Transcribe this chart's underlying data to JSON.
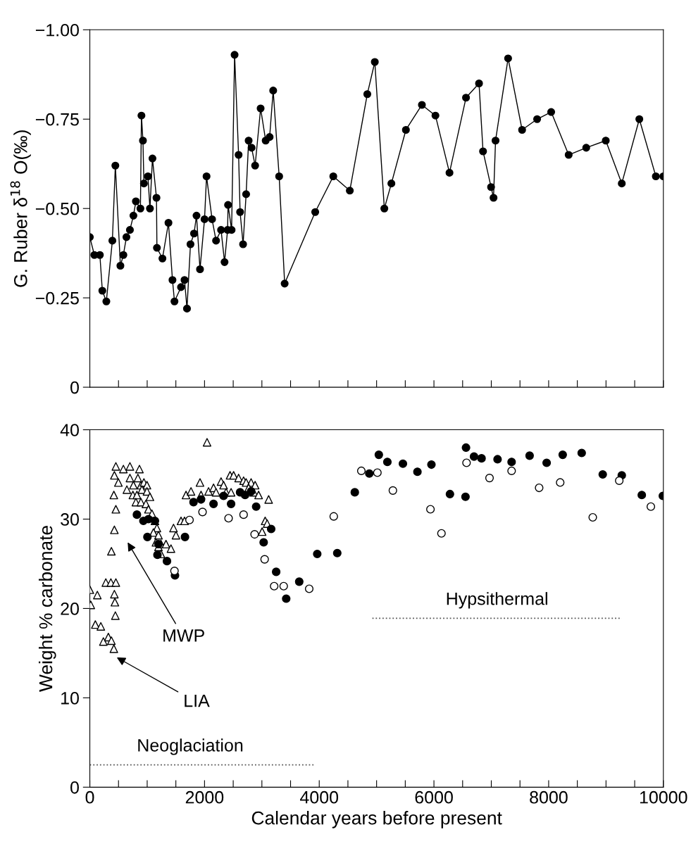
{
  "chart_data": [
    {
      "type": "line",
      "ylabel": "G. Ruber δ$^{18}$ O(‰)",
      "marker": "circle",
      "line_style": "solid",
      "grid": false,
      "legend": false,
      "tick_labels": "y",
      "xlim": [
        0,
        10000
      ],
      "ylim": [
        0,
        -1.0
      ],
      "xticks": [
        {
          "value": 0,
          "label": null
        },
        {
          "value": 500,
          "label": null
        },
        {
          "value": 1000,
          "label": null
        },
        {
          "value": 1500,
          "label": null
        },
        {
          "value": 2000,
          "label": null
        },
        {
          "value": 2500,
          "label": null
        },
        {
          "value": 3000,
          "label": null
        },
        {
          "value": 3500,
          "label": null
        },
        {
          "value": 4000,
          "label": null
        },
        {
          "value": 4500,
          "label": null
        },
        {
          "value": 5000,
          "label": null
        },
        {
          "value": 5500,
          "label": null
        },
        {
          "value": 6000,
          "label": null
        },
        {
          "value": 6500,
          "label": null
        },
        {
          "value": 7000,
          "label": null
        },
        {
          "value": 7500,
          "label": null
        },
        {
          "value": 8000,
          "label": null
        },
        {
          "value": 8500,
          "label": null
        },
        {
          "value": 9000,
          "label": null
        },
        {
          "value": 9500,
          "label": null
        },
        {
          "value": 10000,
          "label": null
        }
      ],
      "yticks": [
        0,
        {
          "value": -0.25,
          "label": "−0.25"
        },
        {
          "value": -0.5,
          "label": "−0.50"
        },
        {
          "value": -0.75,
          "label": "−0.75"
        },
        {
          "value": -1.0,
          "label": "−1.00"
        }
      ],
      "series": [
        {
          "color": "#000000",
          "x": [
            0,
            79,
            175,
            218,
            288,
            393,
            445,
            533,
            585,
            638,
            699,
            760,
            803,
            882,
            900,
            926,
            943,
            1013,
            1048,
            1092,
            1162,
            1170,
            1266,
            1371,
            1441,
            1476,
            1590,
            1651,
            1694,
            1755,
            1817,
            1860,
            1921,
            2000,
            2035,
            2131,
            2201,
            2288,
            2349,
            2402,
            2410,
            2472,
            2524,
            2594,
            2620,
            2672,
            2725,
            2769,
            2821,
            2882,
            2978,
            3066,
            3135,
            3197,
            3301,
            3397,
            3930,
            4245,
            4533,
            4838,
            4969,
            5135,
            5258,
            5511,
            5790,
            6026,
            6271,
            6559,
            6786,
            6856,
            6996,
            7039,
            7074,
            7293,
            7537,
            7799,
            8044,
            8349,
            8655,
            8996,
            9275,
            9581,
            9869,
            10000
          ],
          "values": [
            -0.42,
            -0.37,
            -0.37,
            -0.27,
            -0.24,
            -0.41,
            -0.62,
            -0.34,
            -0.37,
            -0.42,
            -0.44,
            -0.48,
            -0.52,
            -0.5,
            -0.76,
            -0.69,
            -0.57,
            -0.59,
            -0.5,
            -0.64,
            -0.53,
            -0.39,
            -0.36,
            -0.46,
            -0.3,
            -0.24,
            -0.28,
            -0.3,
            -0.22,
            -0.4,
            -0.43,
            -0.48,
            -0.33,
            -0.47,
            -0.59,
            -0.47,
            -0.41,
            -0.44,
            -0.35,
            -0.44,
            -0.51,
            -0.44,
            -0.93,
            -0.65,
            -0.49,
            -0.4,
            -0.54,
            -0.69,
            -0.67,
            -0.62,
            -0.78,
            -0.69,
            -0.7,
            -0.83,
            -0.59,
            -0.29,
            -0.49,
            -0.59,
            -0.55,
            -0.82,
            -0.91,
            -0.5,
            -0.57,
            -0.72,
            -0.79,
            -0.76,
            -0.6,
            -0.81,
            -0.85,
            -0.66,
            -0.56,
            -0.53,
            -0.69,
            -0.92,
            -0.72,
            -0.75,
            -0.77,
            -0.65,
            -0.67,
            -0.69,
            -0.57,
            -0.75,
            -0.59,
            -0.59
          ]
        }
      ]
    },
    {
      "type": "scatter",
      "xlabel": "Calendar years before present",
      "ylabel": "Weight % carbonate",
      "grid": false,
      "legend": false,
      "xlim": [
        0,
        10000
      ],
      "ylim": [
        0,
        40
      ],
      "xticks": [
        0,
        {
          "value": 500,
          "label": null
        },
        {
          "value": 1000,
          "label": null
        },
        {
          "value": 1500,
          "label": null
        },
        2000,
        {
          "value": 2500,
          "label": null
        },
        {
          "value": 3000,
          "label": null
        },
        {
          "value": 3500,
          "label": null
        },
        4000,
        {
          "value": 4500,
          "label": null
        },
        {
          "value": 5000,
          "label": null
        },
        {
          "value": 5500,
          "label": null
        },
        6000,
        {
          "value": 6500,
          "label": null
        },
        {
          "value": 7000,
          "label": null
        },
        {
          "value": 7500,
          "label": null
        },
        8000,
        {
          "value": 8500,
          "label": null
        },
        {
          "value": 9000,
          "label": null
        },
        {
          "value": 9500,
          "label": null
        },
        10000
      ],
      "yticks": [
        0,
        10,
        20,
        30,
        40
      ],
      "annotations": [
        "MWP",
        "LIA",
        "Neoglaciation",
        "Hypsithermal"
      ],
      "series": [
        {
          "type": "scatter",
          "marker": "triangle",
          "color": "#ffffff",
          "x": [
            0,
            17,
            131,
            96,
            192,
            236,
            323,
            376,
            419,
            279,
            367,
            454,
            376,
            428,
            437,
            445,
            428,
            454,
            454,
            428,
            419,
            498,
            585,
            699,
            865,
            699,
            646,
            760,
            838,
            891,
            943,
            996,
            751,
            821,
            908,
            996,
            1048,
            803,
            891,
            978,
            1022,
            1083,
            1135,
            1170,
            1109,
            1197,
            1153,
            1197,
            1240,
            1328,
            1240,
            1415,
            1502,
            1459,
            1590,
            1651,
            1677,
            1764,
            1921,
            2044,
            1939,
            2070,
            2157,
            2201,
            2288,
            2332,
            2445,
            2507,
            2594,
            2681,
            2725,
            2812,
            2882,
            2769,
            2856,
            2943,
            3118,
            3057,
            3092,
            3004,
            2376,
            2463
          ],
          "values": [
            22.1,
            20.4,
            21.5,
            18.2,
            18.0,
            16.3,
            16.8,
            16.4,
            15.5,
            22.9,
            22.9,
            22.9,
            26.4,
            21.6,
            20.7,
            19.2,
            28.8,
            31.1,
            35.9,
            34.9,
            32.7,
            34.1,
            35.6,
            35.9,
            35.6,
            34.6,
            33.3,
            33.8,
            34.6,
            33.8,
            34.1,
            33.8,
            32.7,
            32.7,
            33.3,
            33.1,
            32.5,
            31.9,
            31.9,
            31.7,
            31.1,
            30.6,
            29.8,
            29.0,
            28.5,
            28.2,
            27.4,
            26.9,
            27.2,
            27.2,
            26.1,
            26.7,
            28.2,
            29.0,
            29.8,
            29.8,
            32.7,
            33.1,
            34.1,
            38.6,
            32.7,
            33.1,
            33.5,
            33.0,
            34.2,
            33.8,
            34.9,
            34.9,
            34.6,
            34.3,
            34.1,
            34.1,
            33.8,
            33.5,
            33.0,
            32.7,
            32.2,
            29.8,
            29.5,
            28.6,
            33.0,
            33.0
          ]
        },
        {
          "type": "scatter",
          "marker": "circle",
          "color": "#000000",
          "x": [
            821,
            934,
            1022,
            1004,
            1135,
            1197,
            1179,
            1345,
            1485,
            1659,
            1808,
            1939,
            2157,
            2332,
            2463,
            2620,
            2707,
            2812,
            2900,
            3031,
            3162,
            3249,
            3424,
            3651,
            3965,
            4314,
            4620,
            4873,
            5039,
            5188,
            5459,
            5712,
            5956,
            6279,
            6550,
            6559,
            6699,
            6830,
            7109,
            7354,
            7668,
            7965,
            8245,
            8576,
            8943,
            9275,
            9624,
            9991
          ],
          "values": [
            30.5,
            29.8,
            30.0,
            28.0,
            29.8,
            27.2,
            26.0,
            25.3,
            23.7,
            28.0,
            31.9,
            32.2,
            31.7,
            32.6,
            31.7,
            33.0,
            32.7,
            33.1,
            31.4,
            27.4,
            28.9,
            24.1,
            21.1,
            23.0,
            26.1,
            26.2,
            33.0,
            35.1,
            37.2,
            36.4,
            36.2,
            35.3,
            36.1,
            32.8,
            32.5,
            38.0,
            37.0,
            36.8,
            36.7,
            36.4,
            37.1,
            36.3,
            37.2,
            37.4,
            35.0,
            34.9,
            32.7,
            32.6
          ]
        },
        {
          "type": "scatter",
          "marker": "circle",
          "color": "#ffffff",
          "x": [
            1476,
            1738,
            1965,
            2419,
            2681,
            2873,
            3048,
            3214,
            3380,
            3825,
            4253,
            4734,
            5014,
            5284,
            5939,
            6131,
            6568,
            6969,
            7354,
            7834,
            8201,
            8769,
            9231,
            9782
          ],
          "values": [
            24.2,
            29.9,
            30.8,
            30.1,
            30.5,
            28.3,
            25.5,
            22.5,
            22.5,
            22.2,
            30.3,
            35.4,
            35.2,
            33.2,
            31.1,
            28.4,
            36.3,
            34.6,
            35.4,
            33.5,
            34.1,
            30.2,
            34.3,
            31.4
          ]
        },
        {
          "type": "line",
          "marker": "none",
          "line_style": "dotted",
          "color": "#555555",
          "x": [
            0,
            3900
          ],
          "values": [
            2.5,
            2.5
          ]
        },
        {
          "type": "line",
          "marker": "none",
          "line_style": "dotted",
          "color": "#555555",
          "x": [
            4926,
            9275
          ],
          "values": [
            18.9,
            18.9
          ]
        }
      ]
    }
  ]
}
